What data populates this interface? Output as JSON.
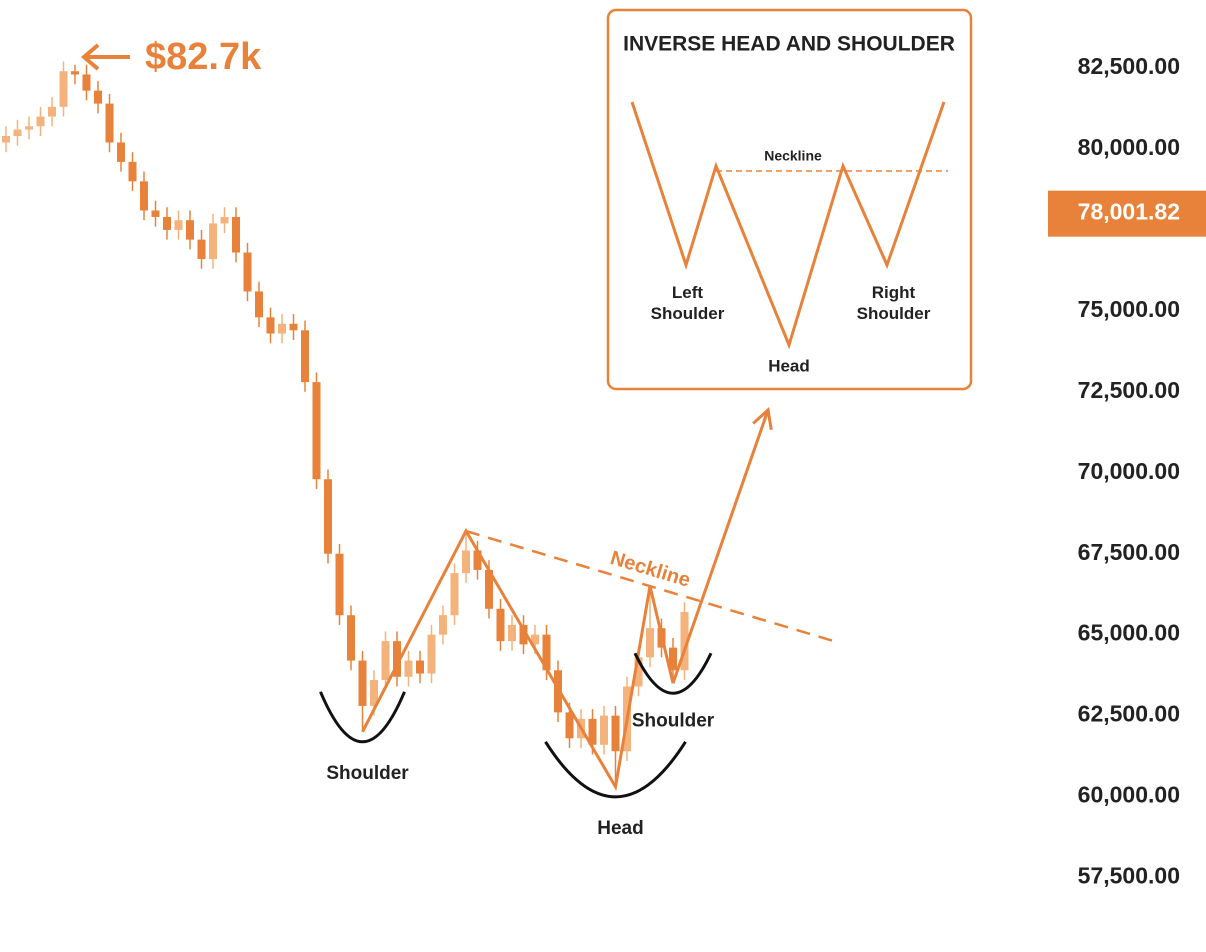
{
  "chart_data": {
    "type": "candlestick",
    "open": [
      80200,
      80400,
      80600,
      80700,
      81000,
      81300,
      82400,
      82300,
      81800,
      81400,
      80200,
      79600,
      79000,
      78100,
      77900,
      77500,
      77800,
      77200,
      76600,
      77700,
      77900,
      76800,
      75600,
      74800,
      74300,
      74600,
      74400,
      72800,
      69800,
      67500,
      65600,
      64200,
      62800,
      63600,
      64800,
      63700,
      64200,
      63800,
      65000,
      65600,
      66900,
      67600,
      67000,
      65800,
      64800,
      65300,
      64700,
      65000,
      63900,
      62600,
      61800,
      62400,
      61600,
      62500,
      61400,
      63400,
      64300,
      65200,
      64600,
      63900
    ],
    "high": [
      80700,
      80900,
      81000,
      81300,
      81600,
      82700,
      82600,
      82600,
      82100,
      81700,
      80500,
      79900,
      79300,
      78400,
      78200,
      78100,
      78100,
      77500,
      78000,
      78200,
      78200,
      77100,
      75900,
      75100,
      74900,
      74900,
      74700,
      73100,
      70100,
      67800,
      65900,
      64500,
      63900,
      65100,
      65100,
      64500,
      64500,
      65300,
      65900,
      67200,
      68200,
      67900,
      67300,
      66100,
      65600,
      65600,
      65300,
      65300,
      64200,
      62900,
      62700,
      62700,
      62800,
      62800,
      63700,
      64600,
      66500,
      65500,
      64900,
      66000
    ],
    "low": [
      79900,
      80100,
      80300,
      80400,
      80700,
      81000,
      82000,
      81500,
      81100,
      79900,
      79300,
      78700,
      77800,
      77600,
      77200,
      77200,
      76900,
      76300,
      76300,
      77400,
      76500,
      75300,
      74500,
      74000,
      74000,
      74100,
      72500,
      69500,
      67200,
      65300,
      63900,
      62000,
      62500,
      63300,
      63400,
      63400,
      63500,
      63500,
      64700,
      65300,
      66600,
      66700,
      65500,
      64500,
      64500,
      64400,
      64400,
      63600,
      62300,
      61500,
      61500,
      61300,
      61300,
      60300,
      61100,
      63100,
      64000,
      64300,
      63500,
      63600
    ],
    "close": [
      80400,
      80600,
      80700,
      81000,
      81300,
      82400,
      82300,
      81800,
      81400,
      80200,
      79600,
      79000,
      78100,
      77900,
      77500,
      77800,
      77200,
      76600,
      77700,
      77900,
      76800,
      75600,
      74800,
      74300,
      74600,
      74400,
      72800,
      69800,
      67500,
      65600,
      64200,
      62800,
      63600,
      64800,
      63700,
      64200,
      63800,
      65000,
      65600,
      66900,
      67600,
      67000,
      65800,
      64800,
      65300,
      64700,
      65000,
      63900,
      62600,
      61800,
      62400,
      61600,
      62500,
      61400,
      63400,
      64300,
      65200,
      64600,
      63900,
      65700
    ],
    "color": "#e8823a",
    "up_color": "#f4b27c",
    "ylim": [
      55200,
      84600
    ],
    "yticks": [
      {
        "value": 57500,
        "label": "57,500.00"
      },
      {
        "value": 60000,
        "label": "60,000.00"
      },
      {
        "value": 62500,
        "label": "62,500.00"
      },
      {
        "value": 65000,
        "label": "65,000.00"
      },
      {
        "value": 67500,
        "label": "67,500.00"
      },
      {
        "value": 70000,
        "label": "70,000.00"
      },
      {
        "value": 72500,
        "label": "72,500.00"
      },
      {
        "value": 75000,
        "label": "75,000.00"
      },
      {
        "value": 80000,
        "label": "80,000.00"
      },
      {
        "value": 82500,
        "label": "82,500.00"
      }
    ],
    "current_price": {
      "value": 78001.82,
      "label": "78,001.82"
    },
    "peak_label": "$82.7k",
    "pattern_labels": [
      "Shoulder",
      "Head",
      "Shoulder"
    ],
    "neckline_label": "Neckline"
  },
  "inset": {
    "title": "INVERSE HEAD AND SHOULDER",
    "neckline": "Neckline",
    "left_shoulder": "Left Shoulder",
    "head": "Head",
    "right_shoulder": "Right Shoulder"
  }
}
